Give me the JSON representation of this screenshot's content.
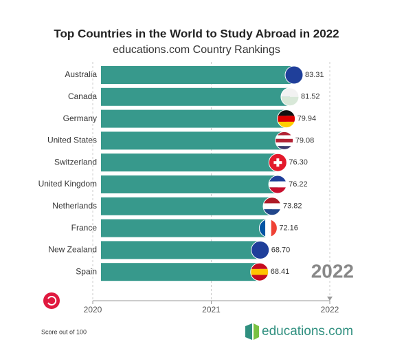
{
  "chart_data": {
    "type": "bar",
    "orientation": "horizontal",
    "title": "Top Countries in the World to Study Abroad in 2022",
    "subtitle": "educations.com Country Rankings",
    "categories": [
      "Australia",
      "Canada",
      "Germany",
      "United States",
      "Switzerland",
      "United Kingdom",
      "Netherlands",
      "France",
      "New Zealand",
      "Spain"
    ],
    "values": [
      83.31,
      81.52,
      79.94,
      79.08,
      76.3,
      76.22,
      73.82,
      72.16,
      68.7,
      68.41
    ],
    "value_labels": [
      "83.31",
      "81.52",
      "79.94",
      "79.08",
      "76.30",
      "76.22",
      "73.82",
      "72.16",
      "68.70",
      "68.41"
    ],
    "color": "#37998c",
    "timeline": {
      "xlim": [
        2020,
        2022
      ],
      "xticks": [
        2020,
        2021,
        2022
      ],
      "current": 2022
    },
    "note": "Score out of 100",
    "logo": "educations.com"
  }
}
